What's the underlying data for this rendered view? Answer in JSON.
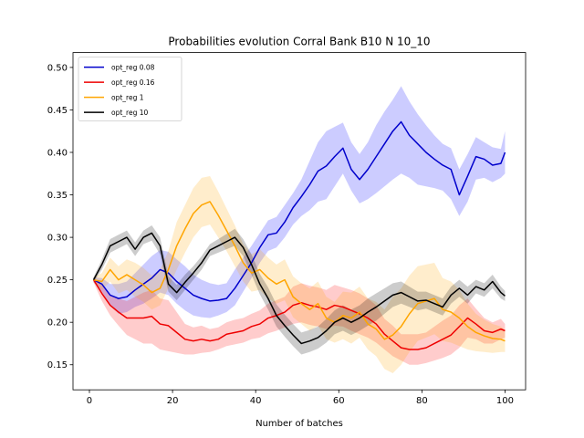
{
  "chart_data": {
    "type": "line",
    "title": "Probabilities evolution Corral Bank B10 N 10_10",
    "xlabel": "Number of batches",
    "ylabel": "",
    "xlim": [
      -3.95,
      104.95
    ],
    "ylim": [
      0.1205,
      0.5175
    ],
    "xticks": [
      0,
      20,
      40,
      60,
      80,
      100
    ],
    "yticks": [
      0.15,
      0.2,
      0.25,
      0.3,
      0.35,
      0.4,
      0.45,
      0.5
    ],
    "ytick_labels": [
      "0.15",
      "0.20",
      "0.25",
      "0.30",
      "0.35",
      "0.40",
      "0.45",
      "0.50"
    ],
    "grid": false,
    "legend_position": "upper-left",
    "series": [
      {
        "name": "opt_reg 0.08",
        "color": "#0000cc",
        "band_color": "#0000ff",
        "x": [
          1,
          3,
          5,
          7,
          9,
          11,
          13,
          15,
          17,
          19,
          21,
          23,
          25,
          27,
          29,
          31,
          33,
          35,
          37,
          39,
          41,
          43,
          45,
          47,
          49,
          51,
          53,
          55,
          57,
          59,
          61,
          63,
          65,
          67,
          69,
          71,
          73,
          75,
          77,
          79,
          81,
          83,
          85,
          87,
          89,
          91,
          93,
          95,
          97,
          99,
          100
        ],
        "y": [
          0.25,
          0.245,
          0.232,
          0.228,
          0.23,
          0.238,
          0.245,
          0.252,
          0.262,
          0.258,
          0.248,
          0.24,
          0.232,
          0.228,
          0.225,
          0.226,
          0.228,
          0.24,
          0.255,
          0.27,
          0.288,
          0.303,
          0.305,
          0.318,
          0.335,
          0.348,
          0.362,
          0.378,
          0.384,
          0.395,
          0.405,
          0.38,
          0.368,
          0.38,
          0.395,
          0.41,
          0.425,
          0.436,
          0.42,
          0.41,
          0.4,
          0.392,
          0.385,
          0.38,
          0.35,
          0.372,
          0.395,
          0.392,
          0.385,
          0.387,
          0.4
        ],
        "lower": [
          0.247,
          0.236,
          0.22,
          0.21,
          0.212,
          0.218,
          0.222,
          0.228,
          0.235,
          0.232,
          0.222,
          0.214,
          0.208,
          0.206,
          0.205,
          0.208,
          0.212,
          0.22,
          0.236,
          0.252,
          0.27,
          0.284,
          0.288,
          0.3,
          0.315,
          0.325,
          0.332,
          0.342,
          0.345,
          0.36,
          0.375,
          0.355,
          0.34,
          0.345,
          0.352,
          0.36,
          0.368,
          0.375,
          0.37,
          0.362,
          0.36,
          0.358,
          0.355,
          0.345,
          0.325,
          0.342,
          0.368,
          0.37,
          0.365,
          0.37,
          0.375
        ],
        "upper": [
          0.253,
          0.252,
          0.245,
          0.245,
          0.248,
          0.258,
          0.268,
          0.278,
          0.285,
          0.283,
          0.274,
          0.266,
          0.256,
          0.25,
          0.246,
          0.244,
          0.246,
          0.262,
          0.276,
          0.29,
          0.305,
          0.32,
          0.324,
          0.338,
          0.352,
          0.368,
          0.39,
          0.412,
          0.425,
          0.43,
          0.435,
          0.412,
          0.398,
          0.412,
          0.432,
          0.448,
          0.462,
          0.478,
          0.46,
          0.445,
          0.432,
          0.42,
          0.41,
          0.405,
          0.38,
          0.398,
          0.418,
          0.412,
          0.406,
          0.404,
          0.425
        ]
      },
      {
        "name": "opt_reg 0.16",
        "color": "#ee0000",
        "band_color": "#ff0000",
        "x": [
          1,
          3,
          5,
          7,
          9,
          11,
          13,
          15,
          17,
          19,
          21,
          23,
          25,
          27,
          29,
          31,
          33,
          35,
          37,
          39,
          41,
          43,
          45,
          47,
          49,
          51,
          53,
          55,
          57,
          59,
          61,
          63,
          65,
          67,
          69,
          71,
          73,
          75,
          77,
          79,
          81,
          83,
          85,
          87,
          89,
          91,
          93,
          95,
          97,
          99,
          100
        ],
        "y": [
          0.25,
          0.234,
          0.22,
          0.212,
          0.205,
          0.205,
          0.205,
          0.207,
          0.198,
          0.196,
          0.188,
          0.18,
          0.178,
          0.18,
          0.178,
          0.18,
          0.186,
          0.188,
          0.19,
          0.195,
          0.198,
          0.205,
          0.208,
          0.212,
          0.22,
          0.223,
          0.22,
          0.218,
          0.215,
          0.22,
          0.218,
          0.214,
          0.21,
          0.205,
          0.198,
          0.186,
          0.178,
          0.17,
          0.168,
          0.168,
          0.17,
          0.175,
          0.18,
          0.185,
          0.195,
          0.205,
          0.198,
          0.19,
          0.188,
          0.192,
          0.19
        ],
        "lower": [
          0.247,
          0.225,
          0.208,
          0.196,
          0.185,
          0.18,
          0.175,
          0.175,
          0.168,
          0.166,
          0.164,
          0.162,
          0.162,
          0.164,
          0.165,
          0.168,
          0.172,
          0.174,
          0.176,
          0.18,
          0.182,
          0.187,
          0.19,
          0.194,
          0.198,
          0.2,
          0.197,
          0.195,
          0.192,
          0.196,
          0.195,
          0.19,
          0.186,
          0.182,
          0.176,
          0.168,
          0.16,
          0.155,
          0.15,
          0.15,
          0.152,
          0.155,
          0.158,
          0.162,
          0.17,
          0.182,
          0.18,
          0.175,
          0.175,
          0.18,
          0.182
        ],
        "upper": [
          0.253,
          0.243,
          0.232,
          0.228,
          0.225,
          0.23,
          0.235,
          0.238,
          0.228,
          0.226,
          0.212,
          0.198,
          0.194,
          0.196,
          0.192,
          0.194,
          0.2,
          0.203,
          0.205,
          0.21,
          0.214,
          0.222,
          0.226,
          0.23,
          0.242,
          0.246,
          0.243,
          0.241,
          0.238,
          0.244,
          0.241,
          0.238,
          0.234,
          0.228,
          0.22,
          0.204,
          0.196,
          0.186,
          0.186,
          0.186,
          0.188,
          0.195,
          0.202,
          0.208,
          0.22,
          0.228,
          0.216,
          0.205,
          0.2,
          0.204,
          0.198
        ]
      },
      {
        "name": "opt_reg 1",
        "color": "#ffa500",
        "band_color": "#ffa500",
        "x": [
          1,
          3,
          5,
          7,
          9,
          11,
          13,
          15,
          17,
          19,
          21,
          23,
          25,
          27,
          29,
          31,
          33,
          35,
          37,
          39,
          41,
          43,
          45,
          47,
          49,
          51,
          53,
          55,
          57,
          59,
          61,
          63,
          65,
          67,
          69,
          71,
          73,
          75,
          77,
          79,
          81,
          83,
          85,
          87,
          89,
          91,
          93,
          95,
          97,
          99,
          100
        ],
        "y": [
          0.25,
          0.248,
          0.262,
          0.25,
          0.256,
          0.25,
          0.244,
          0.235,
          0.24,
          0.262,
          0.29,
          0.31,
          0.328,
          0.338,
          0.342,
          0.326,
          0.308,
          0.29,
          0.27,
          0.258,
          0.262,
          0.252,
          0.245,
          0.25,
          0.23,
          0.222,
          0.215,
          0.222,
          0.205,
          0.2,
          0.208,
          0.205,
          0.212,
          0.198,
          0.192,
          0.18,
          0.185,
          0.195,
          0.21,
          0.222,
          0.225,
          0.228,
          0.215,
          0.212,
          0.205,
          0.195,
          0.188,
          0.184,
          0.181,
          0.18,
          0.178
        ],
        "lower": [
          0.247,
          0.238,
          0.248,
          0.234,
          0.238,
          0.23,
          0.224,
          0.215,
          0.22,
          0.24,
          0.262,
          0.282,
          0.3,
          0.312,
          0.315,
          0.3,
          0.284,
          0.266,
          0.248,
          0.236,
          0.238,
          0.228,
          0.222,
          0.226,
          0.206,
          0.198,
          0.19,
          0.196,
          0.18,
          0.176,
          0.18,
          0.175,
          0.182,
          0.168,
          0.16,
          0.145,
          0.14,
          0.15,
          0.165,
          0.178,
          0.182,
          0.186,
          0.178,
          0.176,
          0.172,
          0.168,
          0.166,
          0.165,
          0.164,
          0.165,
          0.165
        ],
        "upper": [
          0.253,
          0.258,
          0.276,
          0.266,
          0.274,
          0.27,
          0.264,
          0.255,
          0.262,
          0.284,
          0.318,
          0.338,
          0.358,
          0.37,
          0.372,
          0.354,
          0.334,
          0.314,
          0.292,
          0.28,
          0.286,
          0.276,
          0.268,
          0.274,
          0.254,
          0.246,
          0.24,
          0.248,
          0.23,
          0.224,
          0.236,
          0.235,
          0.242,
          0.228,
          0.224,
          0.215,
          0.23,
          0.24,
          0.255,
          0.266,
          0.268,
          0.27,
          0.252,
          0.248,
          0.238,
          0.222,
          0.21,
          0.203,
          0.198,
          0.195,
          0.191
        ]
      },
      {
        "name": "opt_reg 10",
        "color": "#000000",
        "band_color": "#000000",
        "x": [
          1,
          3,
          5,
          7,
          9,
          11,
          13,
          15,
          17,
          19,
          21,
          23,
          25,
          27,
          29,
          31,
          33,
          35,
          37,
          39,
          41,
          43,
          45,
          47,
          49,
          51,
          53,
          55,
          57,
          59,
          61,
          63,
          65,
          67,
          69,
          71,
          73,
          75,
          77,
          79,
          81,
          83,
          85,
          87,
          89,
          91,
          93,
          95,
          97,
          99,
          100
        ],
        "y": [
          0.25,
          0.268,
          0.29,
          0.295,
          0.3,
          0.286,
          0.3,
          0.305,
          0.29,
          0.245,
          0.235,
          0.247,
          0.258,
          0.27,
          0.285,
          0.29,
          0.295,
          0.3,
          0.288,
          0.268,
          0.245,
          0.228,
          0.208,
          0.196,
          0.185,
          0.175,
          0.178,
          0.182,
          0.19,
          0.2,
          0.205,
          0.2,
          0.205,
          0.212,
          0.218,
          0.225,
          0.232,
          0.235,
          0.23,
          0.225,
          0.226,
          0.222,
          0.218,
          0.232,
          0.24,
          0.232,
          0.242,
          0.238,
          0.248,
          0.235,
          0.231
        ],
        "lower": [
          0.247,
          0.262,
          0.282,
          0.287,
          0.292,
          0.278,
          0.292,
          0.296,
          0.28,
          0.236,
          0.226,
          0.238,
          0.25,
          0.262,
          0.278,
          0.282,
          0.286,
          0.29,
          0.278,
          0.256,
          0.233,
          0.215,
          0.195,
          0.183,
          0.172,
          0.162,
          0.165,
          0.169,
          0.176,
          0.186,
          0.19,
          0.185,
          0.19,
          0.196,
          0.202,
          0.21,
          0.218,
          0.222,
          0.218,
          0.214,
          0.216,
          0.212,
          0.208,
          0.222,
          0.23,
          0.222,
          0.234,
          0.23,
          0.24,
          0.228,
          0.225
        ],
        "upper": [
          0.253,
          0.274,
          0.298,
          0.303,
          0.308,
          0.294,
          0.308,
          0.314,
          0.3,
          0.254,
          0.244,
          0.256,
          0.266,
          0.278,
          0.292,
          0.298,
          0.304,
          0.31,
          0.298,
          0.28,
          0.257,
          0.241,
          0.221,
          0.209,
          0.198,
          0.188,
          0.191,
          0.195,
          0.204,
          0.214,
          0.22,
          0.215,
          0.22,
          0.228,
          0.234,
          0.24,
          0.246,
          0.248,
          0.242,
          0.236,
          0.236,
          0.232,
          0.228,
          0.242,
          0.25,
          0.242,
          0.25,
          0.246,
          0.256,
          0.242,
          0.237
        ]
      }
    ]
  }
}
